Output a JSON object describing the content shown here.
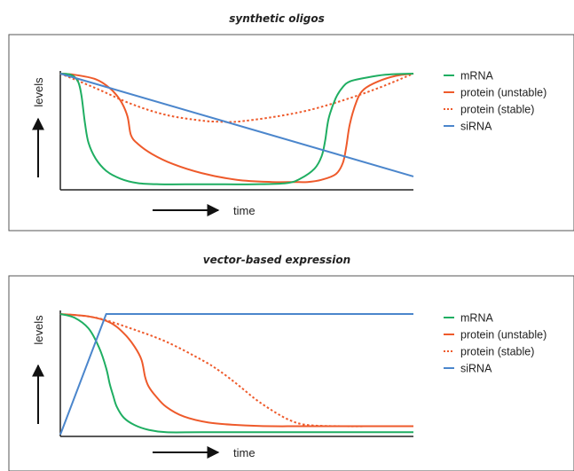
{
  "chart_data": [
    {
      "type": "line",
      "title": "synthetic oligos",
      "xlabel": "time",
      "ylabel": "levels",
      "xlim": [
        0,
        100
      ],
      "ylim": [
        0,
        100
      ],
      "grid": false,
      "legend": "right",
      "series": [
        {
          "name": "mRNA",
          "color": "#1fae62",
          "style": "solid",
          "x": [
            0,
            3,
            5,
            6,
            7,
            8,
            10,
            13,
            17,
            22,
            28,
            40,
            55,
            64,
            68,
            72,
            74,
            75,
            76,
            78,
            80,
            82,
            86,
            92,
            100
          ],
          "y": [
            100,
            99,
            93,
            80,
            55,
            38,
            24,
            13,
            6,
            2,
            1,
            1,
            1,
            2,
            6,
            15,
            26,
            40,
            60,
            78,
            88,
            93,
            96,
            99,
            100
          ]
        },
        {
          "name": "protein (unstable)",
          "color": "#ee5a2b",
          "style": "solid",
          "x": [
            0,
            4,
            10,
            14,
            17,
            19,
            20,
            22,
            26,
            32,
            40,
            50,
            60,
            66,
            70,
            74,
            78,
            80,
            81,
            82,
            84,
            86,
            90,
            95,
            100
          ],
          "y": [
            100,
            99,
            95,
            87,
            76,
            62,
            45,
            37,
            28,
            19,
            11,
            5,
            3,
            3,
            3,
            5,
            10,
            20,
            35,
            55,
            76,
            86,
            93,
            98,
            100
          ]
        },
        {
          "name": "protein (stable)",
          "color": "#ee5a2b",
          "style": "dotted",
          "x": [
            0,
            10,
            20,
            30,
            40,
            45,
            50,
            60,
            70,
            80,
            90,
            100
          ],
          "y": [
            100,
            87,
            73,
            63,
            58,
            57,
            57,
            61,
            67,
            76,
            87,
            100
          ]
        },
        {
          "name": "siRNA",
          "color": "#4b86cc",
          "style": "solid",
          "x": [
            0,
            100
          ],
          "y": [
            100,
            8
          ]
        }
      ]
    },
    {
      "type": "line",
      "title": "vector-based expression",
      "xlabel": "time",
      "ylabel": "levels",
      "xlim": [
        0,
        100
      ],
      "ylim": [
        0,
        100
      ],
      "grid": false,
      "legend": "right",
      "series": [
        {
          "name": "mRNA",
          "color": "#1fae62",
          "style": "solid",
          "x": [
            0,
            4,
            8,
            11,
            13,
            14,
            15,
            16,
            18,
            21,
            25,
            30,
            40,
            60,
            100
          ],
          "y": [
            100,
            97,
            88,
            72,
            55,
            42,
            32,
            23,
            14,
            8,
            4,
            2,
            2,
            2,
            2
          ]
        },
        {
          "name": "protein (unstable)",
          "color": "#ee5a2b",
          "style": "solid",
          "x": [
            0,
            8,
            14,
            18,
            21,
            23,
            24,
            25,
            27,
            30,
            35,
            42,
            50,
            60,
            70,
            100
          ],
          "y": [
            100,
            98,
            93,
            84,
            73,
            62,
            48,
            40,
            32,
            23,
            15,
            10,
            8,
            7,
            7,
            7
          ]
        },
        {
          "name": "protein (stable)",
          "color": "#ee5a2b",
          "style": "dotted",
          "x": [
            0,
            10,
            20,
            30,
            40,
            45,
            50,
            55,
            60,
            65,
            70,
            80,
            90,
            100
          ],
          "y": [
            100,
            97,
            88,
            77,
            62,
            53,
            42,
            30,
            20,
            12,
            8,
            7,
            7,
            7
          ]
        },
        {
          "name": "siRNA",
          "color": "#4b86cc",
          "style": "solid",
          "x": [
            0,
            13,
            100
          ],
          "y": [
            0,
            100,
            100
          ]
        }
      ]
    }
  ]
}
